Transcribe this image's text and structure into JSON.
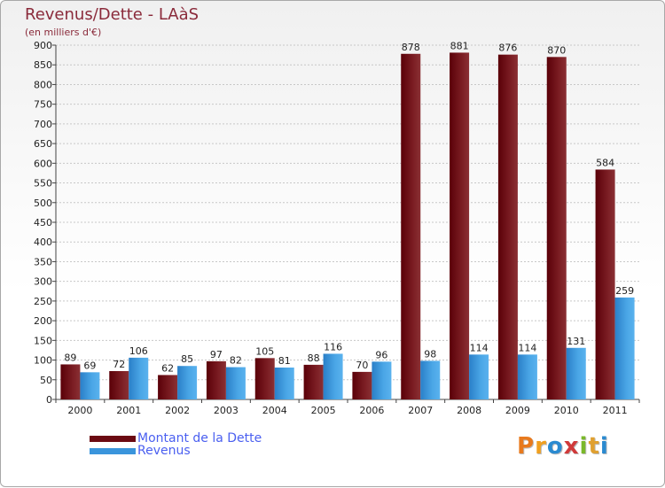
{
  "title": "Revenus/Dette - LAàS",
  "subtitle": "(en milliers d'€)",
  "legend": [
    {
      "label": "Montant de la Dette",
      "color": "#6b0a12"
    },
    {
      "label": "Revenus",
      "color": "#3a95dc"
    }
  ],
  "logo_text": "Proxiti",
  "logo_colors": [
    "#e87a1e",
    "#f0a020",
    "#2a8ad0",
    "#d03a3a",
    "#7ab82a",
    "#e0a030",
    "#2a8ad0"
  ],
  "chart_data": {
    "type": "bar",
    "categories": [
      "2000",
      "2001",
      "2002",
      "2003",
      "2004",
      "2005",
      "2006",
      "2007",
      "2008",
      "2009",
      "2010",
      "2011"
    ],
    "series": [
      {
        "name": "Montant de la Dette",
        "color": "#6b0a12",
        "values": [
          89,
          72,
          62,
          97,
          105,
          88,
          70,
          878,
          881,
          876,
          870,
          584
        ]
      },
      {
        "name": "Revenus",
        "color": "#3a95dc",
        "values": [
          69,
          106,
          85,
          82,
          81,
          116,
          96,
          98,
          114,
          114,
          131,
          259
        ]
      }
    ],
    "ylim": [
      0,
      900
    ],
    "yticks": [
      0,
      50,
      100,
      150,
      200,
      250,
      300,
      350,
      400,
      450,
      500,
      550,
      600,
      650,
      700,
      750,
      800,
      850,
      900
    ],
    "grid": true,
    "legend_position": "bottom-left"
  }
}
